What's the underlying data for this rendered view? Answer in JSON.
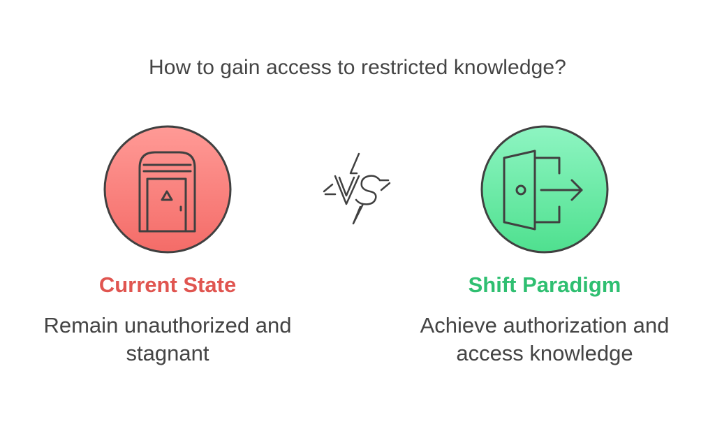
{
  "title": "How to gain access to restricted knowledge?",
  "left": {
    "heading": "Current State",
    "description": "Remain unauthorized and stagnant",
    "icon": "door-icon",
    "color": "#e05550",
    "circle_fill_top": "#ff9a96",
    "circle_fill_bottom": "#f46c68"
  },
  "center": {
    "label": "VS",
    "icon": "vs-lightning-icon"
  },
  "right": {
    "heading": "Shift Paradigm",
    "description": "Achieve authorization and access knowledge",
    "icon": "exit-door-arrow-icon",
    "color": "#2fbf71",
    "circle_fill_top": "#8ef5c2",
    "circle_fill_bottom": "#4fe08f"
  },
  "stroke_color": "#404040"
}
